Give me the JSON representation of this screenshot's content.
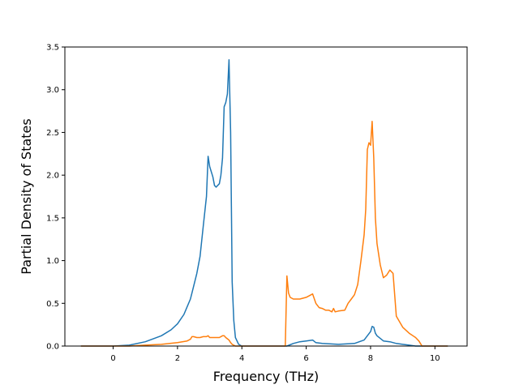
{
  "chart_data": {
    "type": "line",
    "title": "",
    "xlabel": "Frequency (THz)",
    "ylabel": "Partial Density of States",
    "xlim": [
      -1.5,
      11.0
    ],
    "ylim": [
      0.0,
      3.5
    ],
    "xticks": [
      0,
      2,
      4,
      6,
      8,
      10
    ],
    "xtick_labels": [
      "0",
      "2",
      "4",
      "6",
      "8",
      "10"
    ],
    "yticks": [
      0.0,
      0.5,
      1.0,
      1.5,
      2.0,
      2.5,
      3.0,
      3.5
    ],
    "ytick_labels": [
      "0.0",
      "0.5",
      "1.0",
      "1.5",
      "2.0",
      "2.5",
      "3.0",
      "3.5"
    ],
    "grid": false,
    "series": [
      {
        "color": "#1f77b4",
        "x": [
          -1.0,
          0.0,
          0.5,
          1.0,
          1.5,
          1.8,
          2.0,
          2.2,
          2.4,
          2.45,
          2.6,
          2.7,
          2.8,
          2.9,
          2.95,
          3.0,
          3.1,
          3.15,
          3.2,
          3.3,
          3.35,
          3.4,
          3.45,
          3.5,
          3.55,
          3.6,
          3.65,
          3.7,
          3.75,
          3.8,
          3.9,
          4.0,
          4.2,
          4.5,
          5.0,
          5.4,
          5.6,
          5.8,
          6.0,
          6.2,
          6.3,
          6.5,
          7.0,
          7.5,
          7.8,
          7.9,
          8.0,
          8.05,
          8.1,
          8.15,
          8.2,
          8.4,
          8.6,
          8.8,
          9.0,
          9.2,
          9.4,
          9.6,
          10.0,
          10.4
        ],
        "y": [
          0.0,
          0.0,
          0.01,
          0.05,
          0.12,
          0.19,
          0.26,
          0.37,
          0.55,
          0.62,
          0.85,
          1.05,
          1.4,
          1.75,
          2.22,
          2.1,
          1.98,
          1.88,
          1.86,
          1.9,
          2.0,
          2.2,
          2.8,
          2.85,
          2.95,
          3.35,
          2.5,
          0.75,
          0.3,
          0.1,
          0.02,
          0.0,
          0.0,
          0.0,
          0.0,
          0.0,
          0.03,
          0.05,
          0.06,
          0.07,
          0.04,
          0.03,
          0.02,
          0.03,
          0.07,
          0.12,
          0.17,
          0.23,
          0.22,
          0.15,
          0.12,
          0.06,
          0.05,
          0.03,
          0.02,
          0.01,
          0.0,
          0.0,
          0.0,
          0.0
        ]
      },
      {
        "color": "#ff7f0e",
        "x": [
          -1.0,
          0.0,
          0.5,
          1.0,
          1.5,
          2.0,
          2.3,
          2.4,
          2.45,
          2.5,
          2.6,
          2.7,
          2.8,
          2.9,
          2.95,
          3.0,
          3.1,
          3.2,
          3.3,
          3.4,
          3.45,
          3.5,
          3.6,
          3.65,
          3.7,
          3.8,
          4.0,
          4.5,
          5.0,
          5.35,
          5.38,
          5.4,
          5.45,
          5.5,
          5.6,
          5.8,
          6.0,
          6.1,
          6.2,
          6.3,
          6.4,
          6.5,
          6.6,
          6.7,
          6.8,
          6.85,
          6.9,
          7.0,
          7.2,
          7.3,
          7.4,
          7.5,
          7.6,
          7.7,
          7.8,
          7.85,
          7.9,
          7.95,
          8.0,
          8.05,
          8.1,
          8.15,
          8.2,
          8.3,
          8.4,
          8.5,
          8.6,
          8.7,
          8.8,
          9.0,
          9.2,
          9.4,
          9.5,
          9.6,
          10.0,
          10.4
        ],
        "y": [
          0.0,
          0.0,
          0.0,
          0.01,
          0.02,
          0.04,
          0.06,
          0.08,
          0.11,
          0.11,
          0.1,
          0.1,
          0.11,
          0.11,
          0.12,
          0.1,
          0.1,
          0.1,
          0.1,
          0.12,
          0.12,
          0.1,
          0.07,
          0.04,
          0.02,
          0.0,
          0.0,
          0.0,
          0.0,
          0.0,
          0.5,
          0.82,
          0.62,
          0.57,
          0.55,
          0.55,
          0.57,
          0.59,
          0.61,
          0.5,
          0.45,
          0.44,
          0.42,
          0.42,
          0.4,
          0.44,
          0.4,
          0.41,
          0.42,
          0.5,
          0.55,
          0.6,
          0.72,
          1.0,
          1.3,
          1.6,
          2.3,
          2.38,
          2.35,
          2.63,
          2.2,
          1.5,
          1.2,
          0.95,
          0.8,
          0.83,
          0.89,
          0.85,
          0.35,
          0.22,
          0.15,
          0.1,
          0.06,
          0.0,
          0.0,
          0.0
        ]
      }
    ]
  }
}
